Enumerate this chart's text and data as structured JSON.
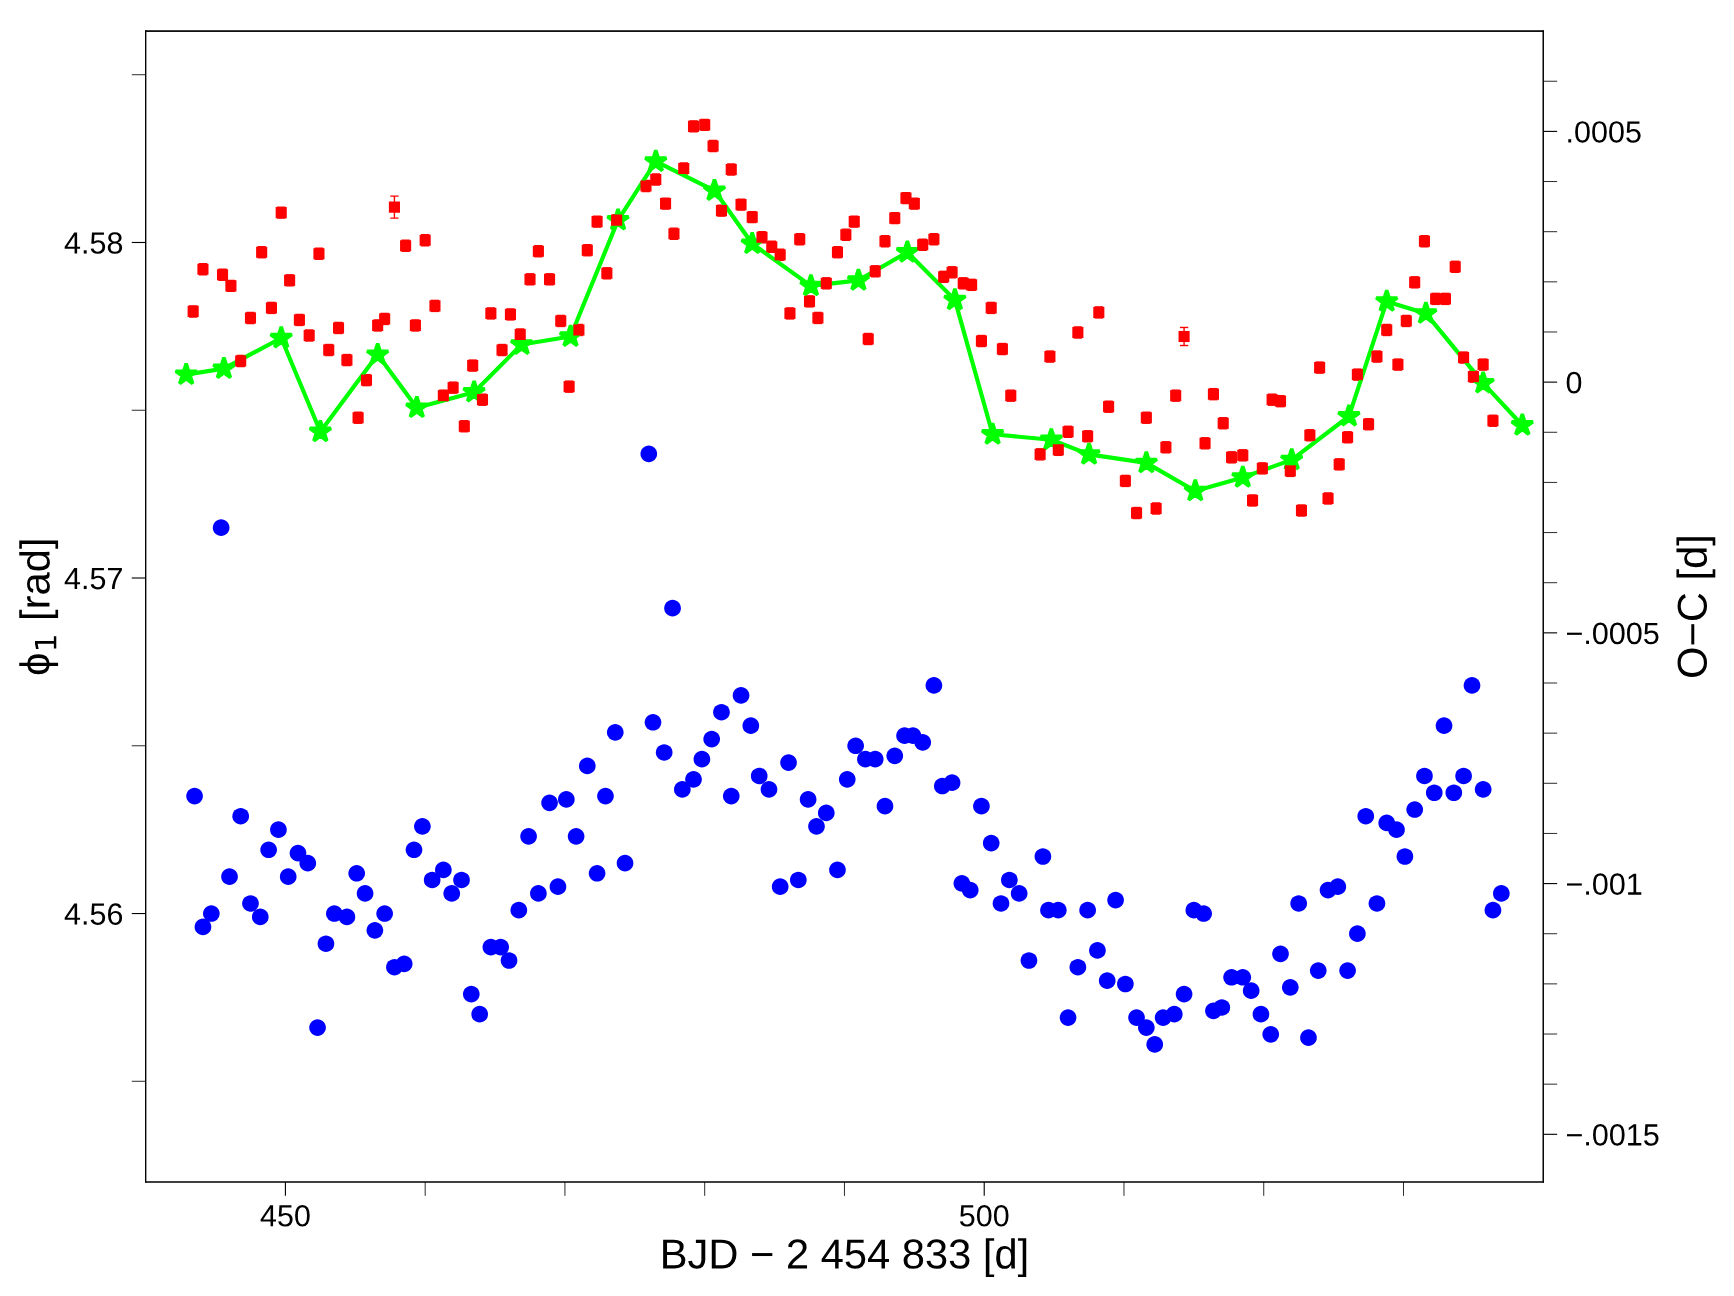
{
  "chart_data": {
    "type": "scatter",
    "xlabel": "BJD − 2 454 833 [d]",
    "ylabel": "ϕ$_{1}$ [rad]",
    "y2label": "O−C [d]",
    "xlim": [
      440,
      540
    ],
    "xticks": [
      {
        "value": 450,
        "label": "450"
      },
      {
        "value": 460,
        "label": null
      },
      {
        "value": 470,
        "label": null
      },
      {
        "value": 480,
        "label": null
      },
      {
        "value": 490,
        "label": null
      },
      {
        "value": 500,
        "label": "500"
      },
      {
        "value": 510,
        "label": null
      },
      {
        "value": 520,
        "label": null
      },
      {
        "value": 530,
        "label": null
      }
    ],
    "ylim": [
      4.552,
      4.5863
    ],
    "yticks": [
      {
        "value": 4.555,
        "label": null
      },
      4.56,
      {
        "value": 4.565,
        "label": null
      },
      4.57,
      {
        "value": 4.575,
        "label": null
      },
      4.58,
      {
        "value": 4.585,
        "label": null
      }
    ],
    "y2lim": [
      -0.001595,
      0.0007
    ],
    "y2ticks": [
      {
        "value": 0.0006,
        "label": null
      },
      {
        "value": 0.0005,
        "label": ".0005"
      },
      {
        "value": 0.0004,
        "label": null
      },
      {
        "value": 0.0003,
        "label": null
      },
      {
        "value": 0.0002,
        "label": null
      },
      {
        "value": 0.0001,
        "label": null
      },
      0,
      {
        "value": -0.0001,
        "label": null
      },
      {
        "value": -0.0002,
        "label": null
      },
      {
        "value": -0.0003,
        "label": null
      },
      {
        "value": -0.0004,
        "label": null
      },
      {
        "value": -0.0005,
        "label": "−.0005"
      },
      {
        "value": -0.0006,
        "label": null
      },
      {
        "value": -0.0007,
        "label": null
      },
      {
        "value": -0.0008,
        "label": null
      },
      {
        "value": -0.0009,
        "label": null
      },
      {
        "value": -0.001,
        "label": "−.001"
      },
      {
        "value": -0.0011,
        "label": null
      },
      {
        "value": -0.0012,
        "label": null
      },
      {
        "value": -0.0013,
        "label": null
      },
      {
        "value": -0.0014,
        "label": null
      },
      {
        "value": -0.0015,
        "label": "−.0015"
      }
    ],
    "grid": false,
    "legend": false,
    "series": [
      {
        "marker": "circle",
        "color": "#0000ff",
        "x": [
          443.5,
          444.1,
          444.7,
          445.4,
          446.0,
          446.8,
          447.5,
          448.2,
          448.8,
          449.5,
          450.2,
          450.9,
          451.6,
          452.3,
          452.9,
          453.5,
          454.4,
          455.1,
          455.7,
          456.4,
          457.1,
          457.8,
          458.5,
          459.2,
          459.8,
          460.5,
          461.3,
          461.9,
          462.6,
          463.3,
          463.9,
          464.7,
          465.4,
          466.0,
          466.7,
          467.4,
          468.1,
          468.9,
          469.5,
          470.1,
          470.8,
          471.6,
          472.3,
          472.9,
          473.6,
          474.3,
          476.0,
          476.3,
          477.1,
          477.7,
          478.4,
          479.2,
          479.8,
          480.5,
          481.2,
          481.9,
          482.6,
          483.3,
          483.9,
          484.6,
          485.4,
          486.0,
          486.7,
          487.4,
          488.0,
          488.7,
          489.5,
          490.2,
          490.8,
          491.5,
          492.2,
          492.9,
          493.6,
          494.3,
          494.9,
          495.6,
          496.4,
          497.0,
          497.7,
          498.4,
          499.0,
          499.8,
          500.5,
          501.2,
          501.8,
          502.5,
          503.2,
          504.2,
          504.6,
          505.3,
          506.0,
          506.7,
          507.4,
          508.1,
          508.8,
          509.4,
          510.1,
          510.9,
          511.6,
          512.2,
          512.8,
          513.6,
          514.3,
          515.0,
          515.7,
          516.4,
          517.0,
          517.7,
          518.5,
          519.1,
          519.8,
          520.5,
          521.2,
          521.9,
          522.5,
          523.2,
          523.9,
          524.6,
          525.3,
          526.0,
          526.7,
          527.3,
          528.1,
          528.8,
          529.5,
          530.1,
          530.8,
          531.5,
          532.2,
          532.9,
          533.6,
          534.3,
          534.9,
          535.7,
          536.4,
          537.0
        ],
        "values": [
          4.5635,
          4.5596,
          4.56,
          4.5715,
          4.5611,
          4.5629,
          4.5603,
          4.5599,
          4.5619,
          4.5625,
          4.5611,
          4.5618,
          4.5615,
          4.5566,
          4.5591,
          4.56,
          4.5599,
          4.5612,
          4.5606,
          4.5595,
          4.56,
          4.5584,
          4.5585,
          4.5619,
          4.5626,
          4.561,
          4.5613,
          4.5606,
          4.561,
          4.5576,
          4.557,
          4.559,
          4.559,
          4.5586,
          4.5601,
          4.5623,
          4.5606,
          4.5633,
          4.5608,
          4.5634,
          4.5623,
          4.5644,
          4.5612,
          4.5635,
          4.5654,
          4.5615,
          4.5737,
          4.5657,
          4.5648,
          4.5691,
          4.5637,
          4.564,
          4.5646,
          4.5652,
          4.566,
          4.5635,
          4.5665,
          4.5656,
          4.5641,
          4.5637,
          4.5608,
          4.5645,
          4.561,
          4.5634,
          4.5626,
          4.563,
          4.5613,
          4.564,
          4.565,
          4.5646,
          4.5646,
          4.5632,
          4.5647,
          4.5653,
          4.5653,
          4.5651,
          4.5668,
          4.5638,
          4.5639,
          4.5609,
          4.5607,
          4.5632,
          4.5621,
          4.5603,
          4.561,
          4.5606,
          4.5586,
          4.5617,
          4.5601,
          4.5601,
          4.5569,
          4.5584,
          4.5601,
          4.5589,
          4.558,
          4.5604,
          4.5579,
          4.5569,
          4.5566,
          4.5561,
          4.5569,
          4.557,
          4.5576,
          4.5601,
          4.56,
          4.5571,
          4.5572,
          4.5581,
          4.5581,
          4.5577,
          4.557,
          4.5564,
          4.5588,
          4.5578,
          4.5603,
          4.5563,
          4.5583,
          4.5607,
          4.5608,
          4.5583,
          4.5594,
          4.5629,
          4.5603,
          4.5627,
          4.5625,
          4.5617,
          4.5631,
          4.5641,
          4.5636,
          4.5656,
          4.5636,
          4.5641,
          4.5668,
          4.5637,
          4.5601,
          4.5606
        ]
      },
      {
        "type": "scatter",
        "marker": "square",
        "color": "#ff0000",
        "axis": "y2",
        "x": [
          443.4,
          444.1,
          445.5,
          446.1,
          446.8,
          447.5,
          448.3,
          449.0,
          449.7,
          450.3,
          451.0,
          451.7,
          452.4,
          453.1,
          453.8,
          454.4,
          455.2,
          455.8,
          456.6,
          457.1,
          457.8,
          458.6,
          459.3,
          460.0,
          460.7,
          461.3,
          462.0,
          462.8,
          463.4,
          464.1,
          464.7,
          465.5,
          466.1,
          466.8,
          467.5,
          468.1,
          468.9,
          469.7,
          470.3,
          471.0,
          471.6,
          472.3,
          473.0,
          473.7,
          475.8,
          476.5,
          477.2,
          477.8,
          478.5,
          479.2,
          480.0,
          480.6,
          481.2,
          481.9,
          482.6,
          483.4,
          484.1,
          484.8,
          485.4,
          486.1,
          486.8,
          487.5,
          488.1,
          488.7,
          489.5,
          490.1,
          490.7,
          491.7,
          492.2,
          492.9,
          493.6,
          494.4,
          495.0,
          495.6,
          496.4,
          497.1,
          497.7,
          498.5,
          499.1,
          499.8,
          500.5,
          501.3,
          501.9,
          504.0,
          504.7,
          505.3,
          506.0,
          506.7,
          507.4,
          508.2,
          508.9,
          510.1,
          510.9,
          511.6,
          512.3,
          513.0,
          513.7,
          514.3,
          515.8,
          516.4,
          517.1,
          517.7,
          518.5,
          519.2,
          519.9,
          520.6,
          521.2,
          521.9,
          522.7,
          523.3,
          524.0,
          524.6,
          525.4,
          526.0,
          526.7,
          527.5,
          528.1,
          528.8,
          529.6,
          530.2,
          530.8,
          531.5,
          532.3,
          533.0,
          533.7,
          534.3,
          535.0,
          535.7,
          536.4
        ],
        "values": [
          0.000141,
          0.000225,
          0.000214,
          0.000192,
          4.2e-05,
          0.000128,
          0.000259,
          0.000148,
          0.000338,
          0.000203,
          0.000124,
          9.3e-05,
          0.000256,
          6.4e-05,
          0.000108,
          4.4e-05,
          -7.1e-05,
          4e-06,
          0.000113,
          0.000126,
          0.000349,
          0.000272,
          0.000113,
          0.000283,
          0.000152,
          -2.7e-05,
          -1.1e-05,
          -8.8e-05,
          3.3e-05,
          -3.5e-05,
          0.000137,
          6.4e-05,
          0.000135,
          9.5e-05,
          0.000205,
          0.000261,
          0.000205,
          0.000122,
          -9e-06,
          0.000104,
          0.000263,
          0.00032,
          0.000217,
          0.000323,
          0.000391,
          0.000404,
          0.000356,
          0.000296,
          0.000426,
          0.00051,
          0.000513,
          0.000471,
          0.000342,
          0.000424,
          0.000354,
          0.000329,
          0.000289,
          0.00027,
          0.000254,
          0.000137,
          0.000285,
          0.000161,
          0.000128,
          0.000197,
          0.000259,
          0.000294,
          0.00032,
          8.6e-05,
          0.000221,
          0.000281,
          0.000327,
          0.000367,
          0.000356,
          0.000274,
          0.000285,
          0.00021,
          0.000219,
          0.000197,
          0.000194,
          8.2e-05,
          0.000148,
          6.6e-05,
          -2.7e-05,
          -0.000144,
          5.1e-05,
          -0.000135,
          -9.9e-05,
          9.9e-05,
          -0.000108,
          0.000139,
          -4.9e-05,
          -0.000197,
          -0.000261,
          -7.1e-05,
          -0.000252,
          -0.00013,
          -2.7e-05,
          9.1e-05,
          -0.000122,
          -2.4e-05,
          -8.2e-05,
          -0.00015,
          -0.000146,
          -0.000236,
          -0.000172,
          -3.5e-05,
          -3.8e-05,
          -0.000177,
          -0.000256,
          -0.000106,
          2.9e-05,
          -0.000232,
          -0.000164,
          -0.00011,
          1.5e-05,
          -8.4e-05,
          5.1e-05,
          0.000104,
          3.5e-05,
          0.000122,
          0.000199,
          0.000281,
          0.000166,
          0.000166,
          0.00023,
          4.9e-05,
          1.1e-05,
          3.5e-05,
          -7.7e-05
        ],
        "errors": [
          1.1e-05,
          1.1e-05,
          1.1e-05,
          1.1e-05,
          1.1e-05,
          1.1e-05,
          1.1e-05,
          1.1e-05,
          1.1e-05,
          1.1e-05,
          1.1e-05,
          1.1e-05,
          1.1e-05,
          1.1e-05,
          1.1e-05,
          1.1e-05,
          1.1e-05,
          1.1e-05,
          1.1e-05,
          1.1e-05,
          2.2e-05,
          1.1e-05,
          1.1e-05,
          1.1e-05,
          1.1e-05,
          1.1e-05,
          1.1e-05,
          1.1e-05,
          1.1e-05,
          1.1e-05,
          1.1e-05,
          1.1e-05,
          1.1e-05,
          1.1e-05,
          1.1e-05,
          1.1e-05,
          1.1e-05,
          1.1e-05,
          1.1e-05,
          1.1e-05,
          1.1e-05,
          1.1e-05,
          1.1e-05,
          1.1e-05,
          1.1e-05,
          1.1e-05,
          1.1e-05,
          1.1e-05,
          1.1e-05,
          1.1e-05,
          1.1e-05,
          1.1e-05,
          1.1e-05,
          1.1e-05,
          1.1e-05,
          1.1e-05,
          1.1e-05,
          1.1e-05,
          1.1e-05,
          1.1e-05,
          1.1e-05,
          1.1e-05,
          1.1e-05,
          1.1e-05,
          1.1e-05,
          1.1e-05,
          1.1e-05,
          1.1e-05,
          1.1e-05,
          1.1e-05,
          1.1e-05,
          1.1e-05,
          1.1e-05,
          1.1e-05,
          1.1e-05,
          1.1e-05,
          1.1e-05,
          1.1e-05,
          1.1e-05,
          1.1e-05,
          1.1e-05,
          1.1e-05,
          1.1e-05,
          1.1e-05,
          1.1e-05,
          1.1e-05,
          1.1e-05,
          1.1e-05,
          1.1e-05,
          1.1e-05,
          1.1e-05,
          1.1e-05,
          1.1e-05,
          1.1e-05,
          1.1e-05,
          1.1e-05,
          1.1e-05,
          1.8e-05,
          1.1e-05,
          1.1e-05,
          1.1e-05,
          1.1e-05,
          1.1e-05,
          1.1e-05,
          1.1e-05,
          1.1e-05,
          1.1e-05,
          1.1e-05,
          1.1e-05,
          1.1e-05,
          1.1e-05,
          1.1e-05,
          1.1e-05,
          1.1e-05,
          1.1e-05,
          1.1e-05,
          1.1e-05,
          1.1e-05,
          1.1e-05,
          1.1e-05,
          1.1e-05,
          1.1e-05,
          1.1e-05,
          1.1e-05,
          1.1e-05,
          1.1e-05,
          1.1e-05,
          1.1e-05,
          1.1e-05
        ]
      },
      {
        "type": "line",
        "marker": "star",
        "line_style": "solid",
        "color": "#00ff00",
        "axis": "y2",
        "x": [
          442.9,
          445.6,
          449.7,
          452.5,
          456.6,
          459.4,
          463.5,
          466.9,
          470.4,
          473.8,
          476.5,
          480.7,
          483.4,
          487.6,
          491.0,
          494.5,
          497.9,
          500.6,
          504.8,
          507.5,
          511.6,
          515.1,
          518.5,
          522.0,
          526.1,
          528.8,
          531.6,
          535.7,
          538.5
        ],
        "values": [
          1.5e-05,
          2.7e-05,
          8.8e-05,
          -9.9e-05,
          5.5e-05,
          -5.1e-05,
          -2e-05,
          7.5e-05,
          9.1e-05,
          0.000323,
          0.00044,
          0.000382,
          0.000276,
          0.000192,
          0.000203,
          0.000259,
          0.000164,
          -0.000104,
          -0.000115,
          -0.000144,
          -0.000161,
          -0.000217,
          -0.00019,
          -0.000155,
          -6.8e-05,
          0.000161,
          0.000137,
          -2e-06,
          -8.6e-05
        ]
      }
    ]
  }
}
